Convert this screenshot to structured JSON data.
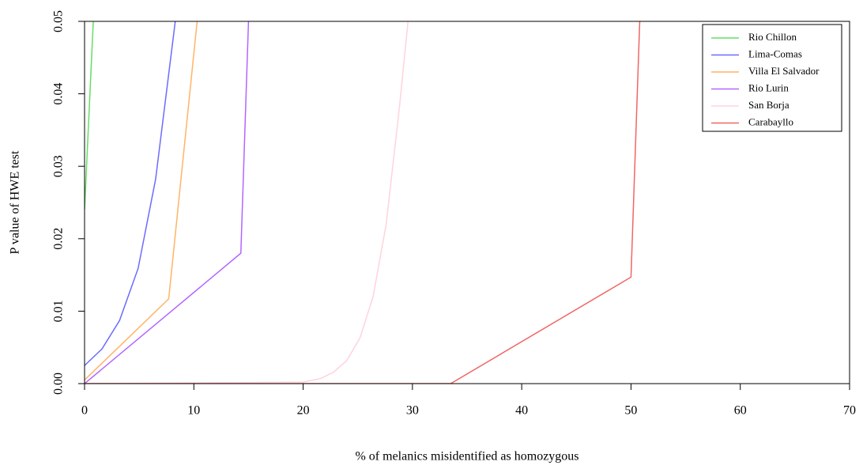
{
  "chart_data": {
    "type": "line",
    "xlabel": "% of melanics misidentified as homozygous",
    "ylabel": "P value of HWE test",
    "xlim": [
      0,
      70
    ],
    "xticks": [
      0,
      10,
      20,
      30,
      40,
      50,
      60,
      70
    ],
    "ylim": [
      0,
      0.05
    ],
    "yticks": [
      {
        "value": 0,
        "label": "0.00"
      },
      0.01,
      0.02,
      0.03,
      0.04,
      0.05
    ],
    "legend": "top-right",
    "series": [
      {
        "name": "Rio Chillon",
        "color": "#66dd66",
        "x": [
          0,
          0.8
        ],
        "values": [
          0.024,
          0.05
        ]
      },
      {
        "name": "Lima-Comas",
        "color": "#6b6bff",
        "x": [
          0,
          1.6,
          3.2,
          4.9,
          6.5,
          8.3
        ],
        "values": [
          0.0025,
          0.0048,
          0.0087,
          0.0159,
          0.0282,
          0.05
        ]
      },
      {
        "name": "Villa El Salvador",
        "color": "#ffb466",
        "x": [
          0,
          7.7,
          10.3
        ],
        "values": [
          0.0005,
          0.0117,
          0.05
        ]
      },
      {
        "name": "Rio Lurin",
        "color": "#b266ff",
        "x": [
          0,
          14.3,
          15
        ],
        "values": [
          0,
          0.018,
          0.05
        ]
      },
      {
        "name": "San Borja",
        "color": "#ffd3dc",
        "x": [
          0,
          20,
          21.6,
          22.8,
          24,
          25.2,
          26.4,
          27.6,
          28.8,
          29.6
        ],
        "values": [
          0,
          0.0002,
          0.0007,
          0.0016,
          0.0032,
          0.0063,
          0.012,
          0.022,
          0.038,
          0.05
        ]
      },
      {
        "name": "Carabayllo",
        "color": "#f06666",
        "x": [
          0,
          33.5,
          50,
          50.8
        ],
        "values": [
          0,
          0,
          0.0147,
          0.05
        ]
      }
    ]
  }
}
